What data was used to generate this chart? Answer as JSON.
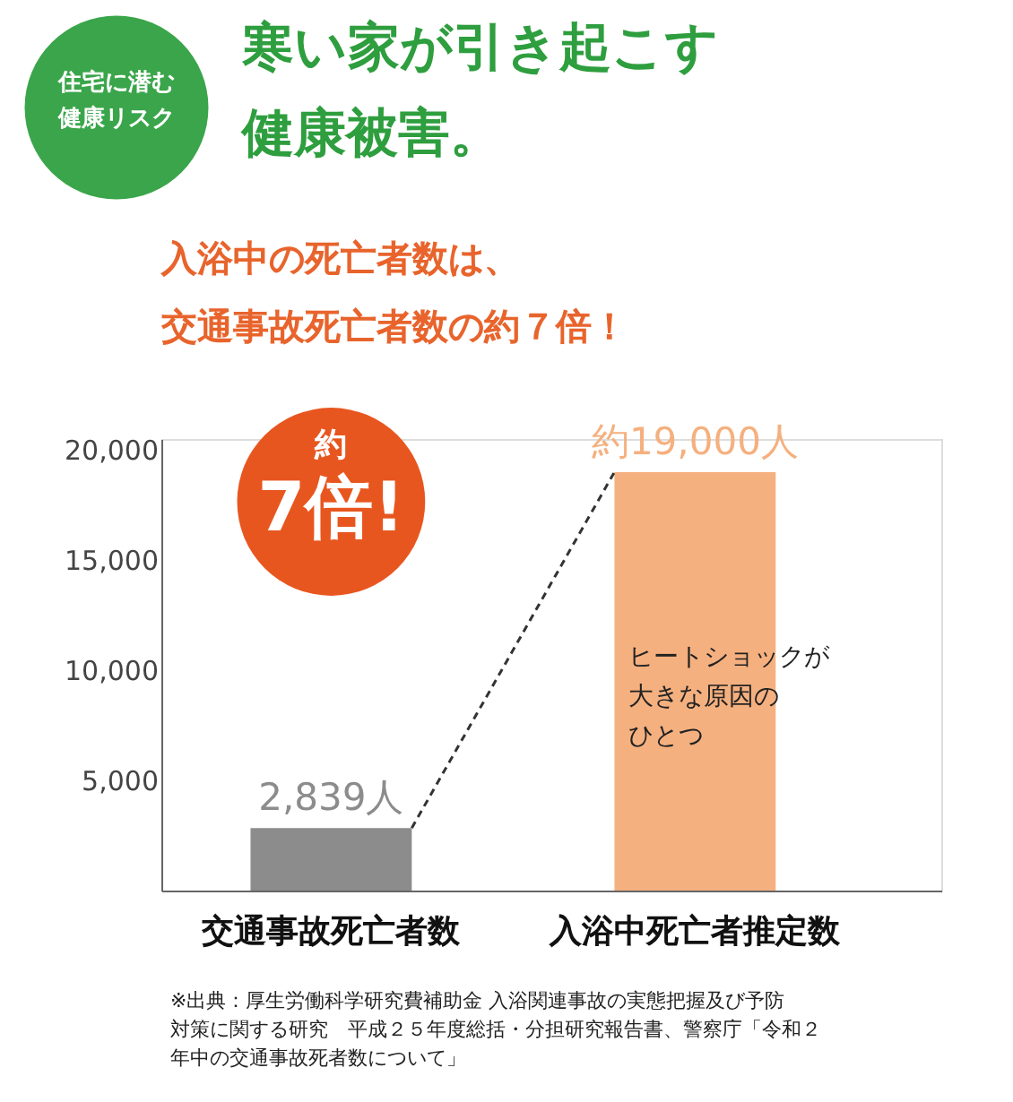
{
  "chart_data": {
    "type": "bar",
    "title": "寒い家が引き起こす健康被害。",
    "subtitle": "入浴中の死亡者数は、交通事故死亡者数の約７倍！",
    "categories": [
      "交通事故死亡者数",
      "入浴中死亡者推定数"
    ],
    "values": [
      2839,
      19000
    ],
    "colors": [
      "#8c8c8c",
      "#f5b07f"
    ],
    "value_labels": [
      "2,839人",
      "約19,000人"
    ],
    "ylim": [
      0,
      20500
    ],
    "yticks": [
      {
        "value": 5000,
        "label": "5,000"
      },
      {
        "value": 10000,
        "label": "10,000"
      },
      {
        "value": 15000,
        "label": "15,000"
      },
      {
        "value": 20000,
        "label": "20,000"
      }
    ],
    "annotations": [
      "住宅に潜む健康リスク",
      "約\n7倍!",
      "ヒートショックが大きな原因のひとつ",
      "※出典：厚生労働科学研究費補助金 入浴関連事故の実態把握及び予防対策に関する研究　平成２５年度総括・分担研究報告書、警察庁「令和２年中の交通事故死者数について」"
    ]
  }
}
